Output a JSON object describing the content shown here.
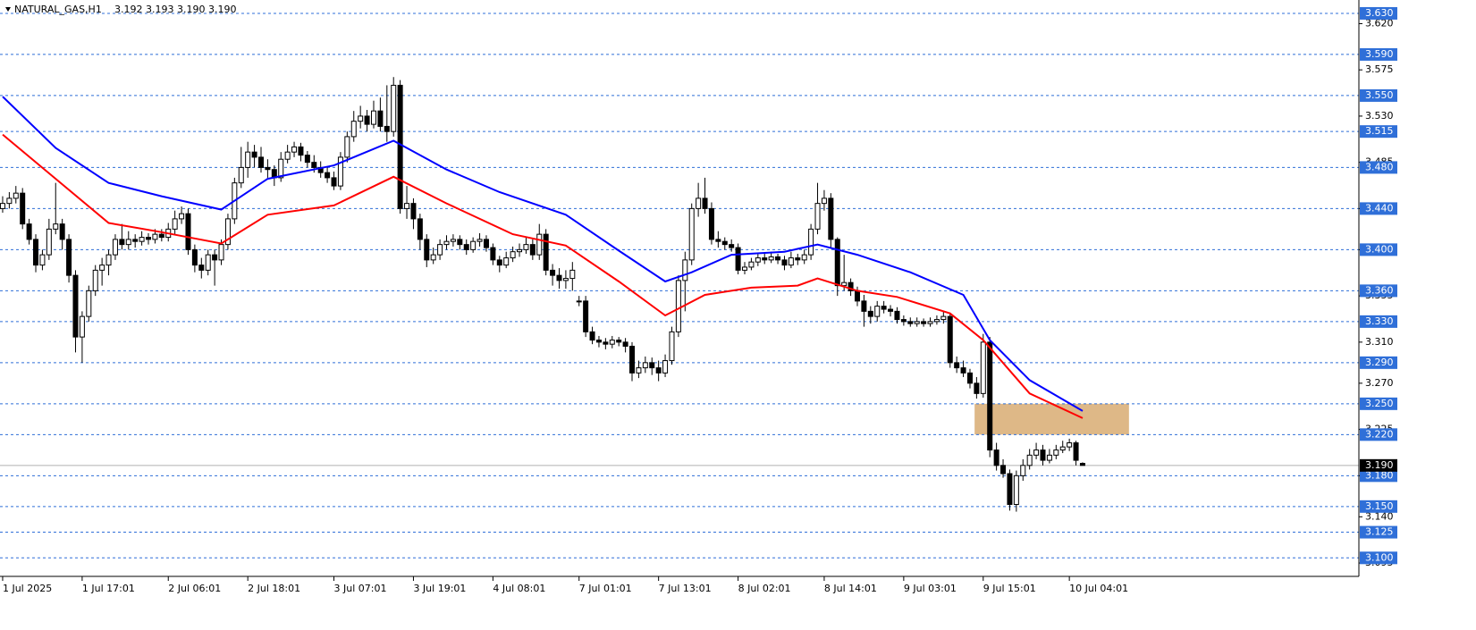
{
  "chart_data": {
    "type": "candlestick",
    "title": "NATURAL_GAS,H1",
    "quote": "3.192 3.193 3.190 3.190",
    "candles": [
      [
        3.44,
        3.452,
        3.436,
        3.445
      ],
      [
        3.445,
        3.456,
        3.44,
        3.45
      ],
      [
        3.45,
        3.462,
        3.445,
        3.455
      ],
      [
        3.455,
        3.46,
        3.42,
        3.425
      ],
      [
        3.425,
        3.43,
        3.405,
        3.41
      ],
      [
        3.41,
        3.415,
        3.378,
        3.385
      ],
      [
        3.385,
        3.4,
        3.38,
        3.395
      ],
      [
        3.395,
        3.43,
        3.39,
        3.42
      ],
      [
        3.42,
        3.465,
        3.415,
        3.425
      ],
      [
        3.425,
        3.43,
        3.4,
        3.41
      ],
      [
        3.41,
        3.415,
        3.368,
        3.375
      ],
      [
        3.375,
        3.38,
        3.3,
        3.315
      ],
      [
        3.315,
        3.34,
        3.29,
        3.335
      ],
      [
        3.335,
        3.365,
        3.33,
        3.36
      ],
      [
        3.36,
        3.385,
        3.355,
        3.38
      ],
      [
        3.38,
        3.392,
        3.365,
        3.385
      ],
      [
        3.385,
        3.4,
        3.375,
        3.395
      ],
      [
        3.395,
        3.415,
        3.39,
        3.41
      ],
      [
        3.41,
        3.425,
        3.4,
        3.405
      ],
      [
        3.405,
        3.418,
        3.4,
        3.41
      ],
      [
        3.41,
        3.415,
        3.402,
        3.408
      ],
      [
        3.408,
        3.418,
        3.404,
        3.412
      ],
      [
        3.412,
        3.416,
        3.405,
        3.41
      ],
      [
        3.41,
        3.42,
        3.406,
        3.415
      ],
      [
        3.415,
        3.42,
        3.408,
        3.412
      ],
      [
        3.412,
        3.426,
        3.408,
        3.42
      ],
      [
        3.42,
        3.438,
        3.415,
        3.43
      ],
      [
        3.43,
        3.442,
        3.425,
        3.435
      ],
      [
        3.435,
        3.44,
        3.395,
        3.4
      ],
      [
        3.4,
        3.405,
        3.378,
        3.385
      ],
      [
        3.385,
        3.392,
        3.372,
        3.38
      ],
      [
        3.38,
        3.4,
        3.375,
        3.395
      ],
      [
        3.395,
        3.4,
        3.365,
        3.39
      ],
      [
        3.39,
        3.41,
        3.385,
        3.405
      ],
      [
        3.405,
        3.435,
        3.4,
        3.43
      ],
      [
        3.43,
        3.47,
        3.425,
        3.465
      ],
      [
        3.465,
        3.5,
        3.46,
        3.48
      ],
      [
        3.48,
        3.505,
        3.47,
        3.495
      ],
      [
        3.495,
        3.502,
        3.48,
        3.49
      ],
      [
        3.49,
        3.5,
        3.475,
        3.48
      ],
      [
        3.48,
        3.488,
        3.47,
        3.478
      ],
      [
        3.478,
        3.482,
        3.462,
        3.47
      ],
      [
        3.47,
        3.495,
        3.466,
        3.488
      ],
      [
        3.488,
        3.502,
        3.484,
        3.495
      ],
      [
        3.495,
        3.505,
        3.49,
        3.5
      ],
      [
        3.5,
        3.504,
        3.486,
        3.492
      ],
      [
        3.492,
        3.496,
        3.48,
        3.485
      ],
      [
        3.485,
        3.492,
        3.475,
        3.48
      ],
      [
        3.48,
        3.486,
        3.47,
        3.475
      ],
      [
        3.475,
        3.48,
        3.465,
        3.47
      ],
      [
        3.47,
        3.476,
        3.458,
        3.462
      ],
      [
        3.462,
        3.495,
        3.458,
        3.49
      ],
      [
        3.49,
        3.515,
        3.485,
        3.51
      ],
      [
        3.51,
        3.535,
        3.505,
        3.525
      ],
      [
        3.525,
        3.54,
        3.518,
        3.53
      ],
      [
        3.53,
        3.536,
        3.515,
        3.522
      ],
      [
        3.522,
        3.545,
        3.518,
        3.535
      ],
      [
        3.535,
        3.548,
        3.515,
        3.52
      ],
      [
        3.52,
        3.56,
        3.505,
        3.515
      ],
      [
        3.515,
        3.568,
        3.51,
        3.56
      ],
      [
        3.56,
        3.565,
        3.435,
        3.44
      ],
      [
        3.44,
        3.462,
        3.43,
        3.445
      ],
      [
        3.445,
        3.45,
        3.42,
        3.43
      ],
      [
        3.43,
        3.435,
        3.4,
        3.41
      ],
      [
        3.41,
        3.415,
        3.383,
        3.39
      ],
      [
        3.39,
        3.402,
        3.386,
        3.395
      ],
      [
        3.395,
        3.41,
        3.39,
        3.405
      ],
      [
        3.405,
        3.414,
        3.4,
        3.408
      ],
      [
        3.408,
        3.415,
        3.403,
        3.41
      ],
      [
        3.41,
        3.414,
        3.4,
        3.405
      ],
      [
        3.405,
        3.41,
        3.395,
        3.4
      ],
      [
        3.4,
        3.412,
        3.397,
        3.408
      ],
      [
        3.408,
        3.416,
        3.403,
        3.41
      ],
      [
        3.41,
        3.414,
        3.398,
        3.402
      ],
      [
        3.402,
        3.406,
        3.385,
        3.39
      ],
      [
        3.39,
        3.394,
        3.378,
        3.385
      ],
      [
        3.385,
        3.398,
        3.382,
        3.392
      ],
      [
        3.392,
        3.403,
        3.388,
        3.398
      ],
      [
        3.398,
        3.406,
        3.393,
        3.4
      ],
      [
        3.4,
        3.412,
        3.396,
        3.405
      ],
      [
        3.405,
        3.41,
        3.39,
        3.395
      ],
      [
        3.395,
        3.425,
        3.39,
        3.415
      ],
      [
        3.415,
        3.42,
        3.375,
        3.38
      ],
      [
        3.38,
        3.386,
        3.365,
        3.375
      ],
      [
        3.375,
        3.382,
        3.362,
        3.37
      ],
      [
        3.37,
        3.38,
        3.362,
        3.372
      ],
      [
        3.372,
        3.388,
        3.36,
        3.38
      ],
      [
        3.35,
        3.355,
        3.345,
        3.35
      ],
      [
        3.35,
        3.355,
        3.315,
        3.32
      ],
      [
        3.32,
        3.325,
        3.308,
        3.312
      ],
      [
        3.312,
        3.316,
        3.305,
        3.31
      ],
      [
        3.31,
        3.314,
        3.303,
        3.308
      ],
      [
        3.308,
        3.316,
        3.304,
        3.312
      ],
      [
        3.312,
        3.315,
        3.306,
        3.31
      ],
      [
        3.31,
        3.314,
        3.3,
        3.306
      ],
      [
        3.306,
        3.31,
        3.272,
        3.28
      ],
      [
        3.28,
        3.292,
        3.275,
        3.285
      ],
      [
        3.285,
        3.296,
        3.28,
        3.29
      ],
      [
        3.29,
        3.295,
        3.278,
        3.285
      ],
      [
        3.285,
        3.292,
        3.272,
        3.28
      ],
      [
        3.28,
        3.298,
        3.276,
        3.292
      ],
      [
        3.292,
        3.325,
        3.288,
        3.32
      ],
      [
        3.32,
        3.375,
        3.315,
        3.37
      ],
      [
        3.37,
        3.398,
        3.34,
        3.39
      ],
      [
        3.39,
        3.445,
        3.385,
        3.44
      ],
      [
        3.44,
        3.465,
        3.432,
        3.45
      ],
      [
        3.45,
        3.47,
        3.435,
        3.44
      ],
      [
        3.44,
        3.446,
        3.405,
        3.41
      ],
      [
        3.41,
        3.418,
        3.402,
        3.408
      ],
      [
        3.408,
        3.412,
        3.4,
        3.405
      ],
      [
        3.405,
        3.41,
        3.398,
        3.402
      ],
      [
        3.402,
        3.406,
        3.376,
        3.38
      ],
      [
        3.38,
        3.388,
        3.376,
        3.383
      ],
      [
        3.383,
        3.392,
        3.38,
        3.388
      ],
      [
        3.388,
        3.396,
        3.384,
        3.392
      ],
      [
        3.392,
        3.396,
        3.386,
        3.39
      ],
      [
        3.39,
        3.398,
        3.387,
        3.393
      ],
      [
        3.393,
        3.396,
        3.386,
        3.39
      ],
      [
        3.39,
        3.394,
        3.38,
        3.385
      ],
      [
        3.385,
        3.398,
        3.382,
        3.392
      ],
      [
        3.392,
        3.396,
        3.385,
        3.39
      ],
      [
        3.39,
        3.4,
        3.386,
        3.395
      ],
      [
        3.395,
        3.425,
        3.39,
        3.42
      ],
      [
        3.42,
        3.465,
        3.415,
        3.445
      ],
      [
        3.445,
        3.458,
        3.438,
        3.45
      ],
      [
        3.45,
        3.455,
        3.402,
        3.41
      ],
      [
        3.41,
        3.412,
        3.355,
        3.365
      ],
      [
        3.365,
        3.395,
        3.36,
        3.368
      ],
      [
        3.368,
        3.372,
        3.355,
        3.36
      ],
      [
        3.36,
        3.364,
        3.345,
        3.35
      ],
      [
        3.35,
        3.356,
        3.325,
        3.34
      ],
      [
        3.34,
        3.345,
        3.328,
        3.335
      ],
      [
        3.335,
        3.35,
        3.33,
        3.345
      ],
      [
        3.345,
        3.35,
        3.338,
        3.342
      ],
      [
        3.342,
        3.346,
        3.335,
        3.34
      ],
      [
        3.34,
        3.344,
        3.328,
        3.332
      ],
      [
        3.332,
        3.336,
        3.326,
        3.33
      ],
      [
        3.33,
        3.334,
        3.325,
        3.328
      ],
      [
        3.328,
        3.334,
        3.325,
        3.33
      ],
      [
        3.33,
        3.333,
        3.325,
        3.328
      ],
      [
        3.328,
        3.334,
        3.325,
        3.33
      ],
      [
        3.33,
        3.336,
        3.327,
        3.332
      ],
      [
        3.332,
        3.34,
        3.328,
        3.335
      ],
      [
        3.335,
        3.338,
        3.285,
        3.29
      ],
      [
        3.29,
        3.296,
        3.28,
        3.285
      ],
      [
        3.285,
        3.292,
        3.276,
        3.28
      ],
      [
        3.28,
        3.284,
        3.265,
        3.27
      ],
      [
        3.27,
        3.276,
        3.255,
        3.26
      ],
      [
        3.26,
        3.318,
        3.256,
        3.31
      ],
      [
        3.31,
        3.315,
        3.198,
        3.205
      ],
      [
        3.205,
        3.212,
        3.185,
        3.19
      ],
      [
        3.19,
        3.196,
        3.178,
        3.182
      ],
      [
        3.182,
        3.186,
        3.146,
        3.152
      ],
      [
        3.152,
        3.185,
        3.145,
        3.18
      ],
      [
        3.18,
        3.196,
        3.175,
        3.19
      ],
      [
        3.19,
        3.206,
        3.186,
        3.2
      ],
      [
        3.2,
        3.212,
        3.196,
        3.205
      ],
      [
        3.205,
        3.21,
        3.19,
        3.195
      ],
      [
        3.195,
        3.206,
        3.192,
        3.2
      ],
      [
        3.2,
        3.21,
        3.196,
        3.205
      ],
      [
        3.205,
        3.214,
        3.202,
        3.208
      ],
      [
        3.208,
        3.216,
        3.204,
        3.212
      ],
      [
        3.212,
        3.214,
        3.19,
        3.195
      ],
      [
        3.192,
        3.193,
        3.19,
        3.19
      ]
    ],
    "series": [
      {
        "color": "#0000ff",
        "x": [
          0,
          8,
          16,
          24,
          33,
          40,
          50,
          59,
          67,
          75,
          85,
          93,
          100,
          104,
          110,
          118,
          123,
          129,
          137,
          145,
          149,
          155,
          163
        ],
        "values": [
          3.549,
          3.499,
          3.465,
          3.452,
          3.439,
          3.469,
          3.482,
          3.506,
          3.478,
          3.456,
          3.434,
          3.399,
          3.369,
          3.378,
          3.395,
          3.398,
          3.405,
          3.395,
          3.378,
          3.356,
          3.312,
          3.273,
          3.243
        ]
      },
      {
        "color": "#ff0000",
        "x": [
          0,
          8,
          16,
          24,
          33,
          40,
          50,
          59,
          67,
          77,
          85,
          93,
          100,
          106,
          113,
          120,
          123,
          129,
          135,
          143,
          148,
          155,
          163
        ],
        "values": [
          3.512,
          3.469,
          3.426,
          3.417,
          3.406,
          3.434,
          3.443,
          3.471,
          3.445,
          3.415,
          3.404,
          3.369,
          3.336,
          3.356,
          3.363,
          3.365,
          3.372,
          3.36,
          3.354,
          3.338,
          3.312,
          3.26,
          3.236
        ]
      }
    ],
    "zone": {
      "x": [
        146.7,
        170
      ],
      "ylim": [
        3.22,
        3.25
      ],
      "color": "#deb887"
    },
    "xlim": [
      -0.4,
      204.7
    ],
    "ylim": [
      3.082,
      3.643
    ],
    "xticks": [
      {
        "value": 0,
        "label": "1 Jul 2025"
      },
      {
        "value": 12,
        "label": "1 Jul 17:01"
      },
      {
        "value": 25,
        "label": "2 Jul 06:01"
      },
      {
        "value": 37,
        "label": "2 Jul 18:01"
      },
      {
        "value": 50,
        "label": "3 Jul 07:01"
      },
      {
        "value": 62,
        "label": "3 Jul 19:01"
      },
      {
        "value": 74,
        "label": "4 Jul 08:01"
      },
      {
        "value": 87,
        "label": "7 Jul 01:01"
      },
      {
        "value": 99,
        "label": "7 Jul 13:01"
      },
      {
        "value": 111,
        "label": "8 Jul 02:01"
      },
      {
        "value": 124,
        "label": "8 Jul 14:01"
      },
      {
        "value": 136,
        "label": "9 Jul 03:01"
      },
      {
        "value": 148,
        "label": "9 Jul 15:01"
      },
      {
        "value": 161,
        "label": "10 Jul 04:01"
      }
    ],
    "yticks": [
      {
        "value": 3.62,
        "label": "3.620"
      },
      {
        "value": 3.575,
        "label": "3.575"
      },
      {
        "value": 3.53,
        "label": "3.530"
      },
      {
        "value": 3.485,
        "label": "3.485"
      },
      {
        "value": 3.44,
        "label": "3.440"
      },
      {
        "value": 3.4,
        "label": "3.400"
      },
      {
        "value": 3.355,
        "label": "3.355"
      },
      {
        "value": 3.31,
        "label": "3.310"
      },
      {
        "value": 3.27,
        "label": "3.270"
      },
      {
        "value": 3.225,
        "label": "3.225"
      },
      {
        "value": 3.18,
        "label": "3.180"
      },
      {
        "value": 3.14,
        "label": "3.140"
      },
      {
        "value": 3.095,
        "label": "3.095"
      }
    ],
    "levels": [
      {
        "value": 3.63,
        "label": "3.630"
      },
      {
        "value": 3.59,
        "label": "3.590"
      },
      {
        "value": 3.55,
        "label": "3.550"
      },
      {
        "value": 3.515,
        "label": "3.515"
      },
      {
        "value": 3.48,
        "label": "3.480"
      },
      {
        "value": 3.44,
        "label": "3.440"
      },
      {
        "value": 3.4,
        "label": "3.400"
      },
      {
        "value": 3.36,
        "label": "3.360"
      },
      {
        "value": 3.33,
        "label": "3.330"
      },
      {
        "value": 3.29,
        "label": "3.290"
      },
      {
        "value": 3.25,
        "label": "3.250"
      },
      {
        "value": 3.22,
        "label": "3.220"
      },
      {
        "value": 3.18,
        "label": "3.180"
      },
      {
        "value": 3.15,
        "label": "3.150"
      },
      {
        "value": 3.125,
        "label": "3.125"
      },
      {
        "value": 3.1,
        "label": "3.100"
      }
    ],
    "level_color": "#2f6fd8",
    "last_price": {
      "value": 3.19,
      "label": "3.190"
    }
  }
}
